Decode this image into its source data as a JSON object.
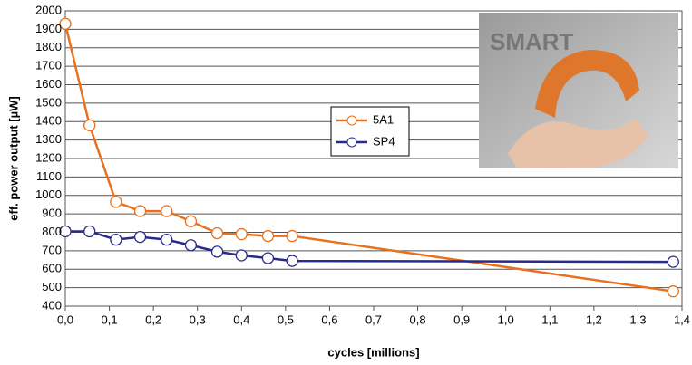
{
  "chart_data": {
    "type": "line",
    "x_label": "cycles [millions]",
    "y_label": "eff. power output [µW]",
    "x": [
      0.0,
      0.055,
      0.115,
      0.17,
      0.23,
      0.285,
      0.345,
      0.4,
      0.46,
      0.515,
      1.38
    ],
    "series": [
      {
        "name": "5A1",
        "color": "#e8701e",
        "values": [
          1930,
          1380,
          965,
          915,
          915,
          860,
          795,
          790,
          780,
          780,
          480
        ]
      },
      {
        "name": "SP4",
        "color": "#2b2a8a",
        "values": [
          805,
          805,
          760,
          775,
          760,
          730,
          695,
          675,
          660,
          645,
          640
        ]
      }
    ],
    "xlim": [
      0,
      1.4
    ],
    "xticks": [
      {
        "value": 0,
        "label": "0,0"
      },
      {
        "value": 0.1,
        "label": "0,1"
      },
      {
        "value": 0.2,
        "label": "0,2"
      },
      {
        "value": 0.3,
        "label": "0,3"
      },
      {
        "value": 0.4,
        "label": "0,4"
      },
      {
        "value": 0.5,
        "label": "0,5"
      },
      {
        "value": 0.6,
        "label": "0,6"
      },
      {
        "value": 0.7,
        "label": "0,7"
      },
      {
        "value": 0.8,
        "label": "0,8"
      },
      {
        "value": 0.9,
        "label": "0,9"
      },
      {
        "value": 1.0,
        "label": "1,0"
      },
      {
        "value": 1.1,
        "label": "1,1"
      },
      {
        "value": 1.2,
        "label": "1,2"
      },
      {
        "value": 1.3,
        "label": "1,3"
      },
      {
        "value": 1.4,
        "label": "1,4"
      }
    ],
    "ylim": [
      400,
      2000
    ],
    "yticks": [
      400,
      500,
      600,
      700,
      800,
      900,
      1000,
      1100,
      1200,
      1300,
      1400,
      1500,
      1600,
      1700,
      1800,
      1900,
      2000
    ],
    "grid": true
  }
}
